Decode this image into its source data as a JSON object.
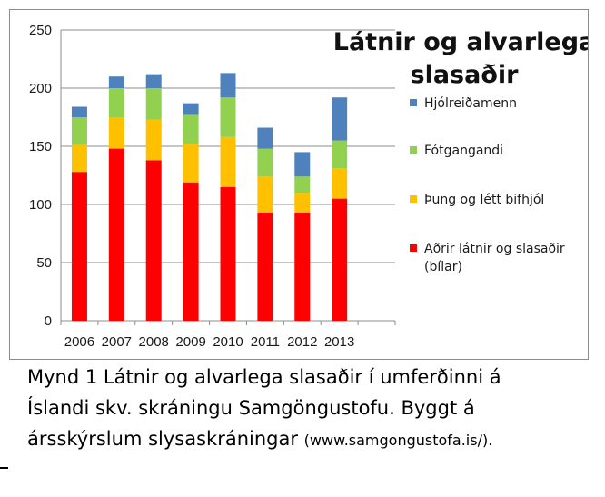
{
  "chart_data": {
    "type": "bar",
    "stacked": true,
    "title_lines": [
      "Látnir og alvarlega",
      "slasaðir"
    ],
    "categories": [
      "2006",
      "2007",
      "2008",
      "2009",
      "2010",
      "2011",
      "2012",
      "2013"
    ],
    "ylim": [
      0,
      250
    ],
    "yticks": [
      0,
      50,
      100,
      150,
      200,
      250
    ],
    "grid": true,
    "legend_position": "right",
    "series": [
      {
        "name_lines": [
          "Aðrir látnir og slasaðir",
          "(bílar)"
        ],
        "color": "#ff0000",
        "values": [
          128,
          148,
          138,
          119,
          115,
          93,
          93,
          105
        ]
      },
      {
        "name_lines": [
          "Þung og létt bifhjól"
        ],
        "color": "#ffc000",
        "values": [
          23,
          27,
          35,
          33,
          43,
          31,
          17,
          26
        ]
      },
      {
        "name_lines": [
          "Fótgangandi"
        ],
        "color": "#92d050",
        "values": [
          24,
          25,
          27,
          25,
          34,
          24,
          14,
          24
        ]
      },
      {
        "name_lines": [
          "Hjólreiðamenn"
        ],
        "color": "#4f81bd",
        "values": [
          9,
          10,
          12,
          10,
          21,
          18,
          21,
          37
        ]
      }
    ]
  },
  "caption": {
    "line1": "Mynd 1 Látnir og alvarlega slasaðir í umferðinni á",
    "line2": "Íslandi skv. skráningu Samgöngustofu. Byggt á",
    "line3": "ársskýrslum slysaskráningar ",
    "source": "(www.samgongustofa.is/).",
    "source_trail": ""
  }
}
